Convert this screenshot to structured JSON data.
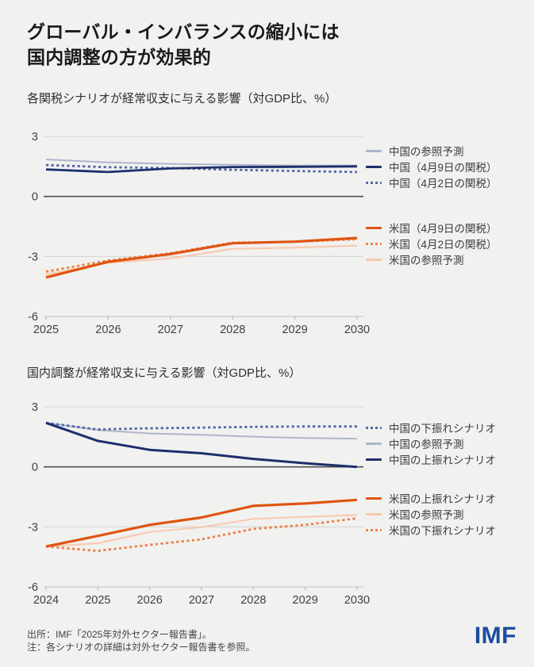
{
  "page": {
    "background": "#f1f1ef",
    "title_line1": "グローバル・インバランスの縮小には",
    "title_line2": "国内調整の方が効果的"
  },
  "footer": {
    "source": "出所：IMF「2025年対外セクター報告書」。",
    "note": "注：各シナリオの詳細は対外セクター報告書を参照。",
    "logo_text": "IMF",
    "logo_color": "#1a4d9d"
  },
  "chart_data": [
    {
      "type": "line",
      "title": "各関税シナリオが経常収支に与える影響（対GDP比、%）",
      "xlabel": "",
      "ylabel": "",
      "x": [
        2025,
        2026,
        2027,
        2028,
        2029,
        2030
      ],
      "ylim": [
        -6,
        3
      ],
      "yticks": [
        3,
        0,
        -3,
        -6
      ],
      "grid": "horizontal",
      "zero_line": true,
      "legend_position": "right",
      "series": [
        {
          "name": "中国の参照予測",
          "color": "#aeb6cc",
          "dash": false,
          "width": 2,
          "values": [
            1.85,
            1.7,
            1.63,
            1.58,
            1.55,
            1.55
          ]
        },
        {
          "name": "中国（4月2日の関税）",
          "color": "#5066a4",
          "dash": true,
          "width": 2.8,
          "values": [
            1.57,
            1.46,
            1.42,
            1.33,
            1.27,
            1.22
          ]
        },
        {
          "name": "中国（4月9日の関税）",
          "color": "#1d2e6b",
          "dash": false,
          "width": 2.8,
          "values": [
            1.35,
            1.22,
            1.4,
            1.47,
            1.48,
            1.5
          ]
        },
        {
          "name": "米国の参照予測",
          "color": "#f8c7ad",
          "dash": false,
          "width": 2,
          "values": [
            -3.9,
            -3.32,
            -3.1,
            -2.62,
            -2.56,
            -2.46
          ]
        },
        {
          "name": "米国（4月2日の関税）",
          "color": "#ec7f4b",
          "dash": true,
          "width": 2.8,
          "values": [
            -3.76,
            -3.2,
            -2.84,
            -2.31,
            -2.27,
            -2.14
          ]
        },
        {
          "name": "米国（4月9日の関税）",
          "color": "#df5411",
          "dash": false,
          "width": 3.2,
          "values": [
            -4.05,
            -3.27,
            -2.88,
            -2.34,
            -2.26,
            -2.08
          ]
        }
      ],
      "legend_groups": [
        [
          0,
          2,
          1
        ],
        [
          5,
          4,
          3
        ]
      ]
    },
    {
      "type": "line",
      "title": "国内調整が経常収支に与える影響（対GDP比、%）",
      "xlabel": "",
      "ylabel": "",
      "x": [
        2024,
        2025,
        2026,
        2027,
        2028,
        2029,
        2030
      ],
      "ylim": [
        -6,
        3
      ],
      "yticks": [
        3,
        0,
        -3,
        -6
      ],
      "grid": "horizontal",
      "zero_line": true,
      "legend_position": "right",
      "series": [
        {
          "name": "中国の参照予測",
          "color": "#aeb6cc",
          "dash": false,
          "width": 2,
          "values": [
            2.2,
            1.84,
            1.67,
            1.6,
            1.51,
            1.44,
            1.41
          ]
        },
        {
          "name": "中国の下振れシナリオ",
          "color": "#5066a4",
          "dash": true,
          "width": 2.8,
          "values": [
            2.2,
            1.87,
            1.93,
            1.96,
            2.0,
            2.02,
            2.02
          ]
        },
        {
          "name": "中国の上振れシナリオ",
          "color": "#1d2e6b",
          "dash": false,
          "width": 3,
          "values": [
            2.2,
            1.3,
            0.85,
            0.68,
            0.4,
            0.18,
            0.0
          ]
        },
        {
          "name": "米国の参照予測",
          "color": "#f8c7ad",
          "dash": false,
          "width": 2,
          "values": [
            -3.98,
            -3.82,
            -3.25,
            -3.02,
            -2.6,
            -2.5,
            -2.4
          ]
        },
        {
          "name": "米国の下振れシナリオ",
          "color": "#ec7f4b",
          "dash": true,
          "width": 2.8,
          "values": [
            -3.98,
            -4.2,
            -3.9,
            -3.62,
            -3.1,
            -2.9,
            -2.57
          ]
        },
        {
          "name": "米国の上振れシナリオ",
          "color": "#df5411",
          "dash": false,
          "width": 3.2,
          "values": [
            -3.98,
            -3.45,
            -2.9,
            -2.53,
            -1.95,
            -1.83,
            -1.65
          ]
        }
      ],
      "legend_groups": [
        [
          1,
          0,
          2
        ],
        [
          5,
          3,
          4
        ]
      ]
    }
  ]
}
